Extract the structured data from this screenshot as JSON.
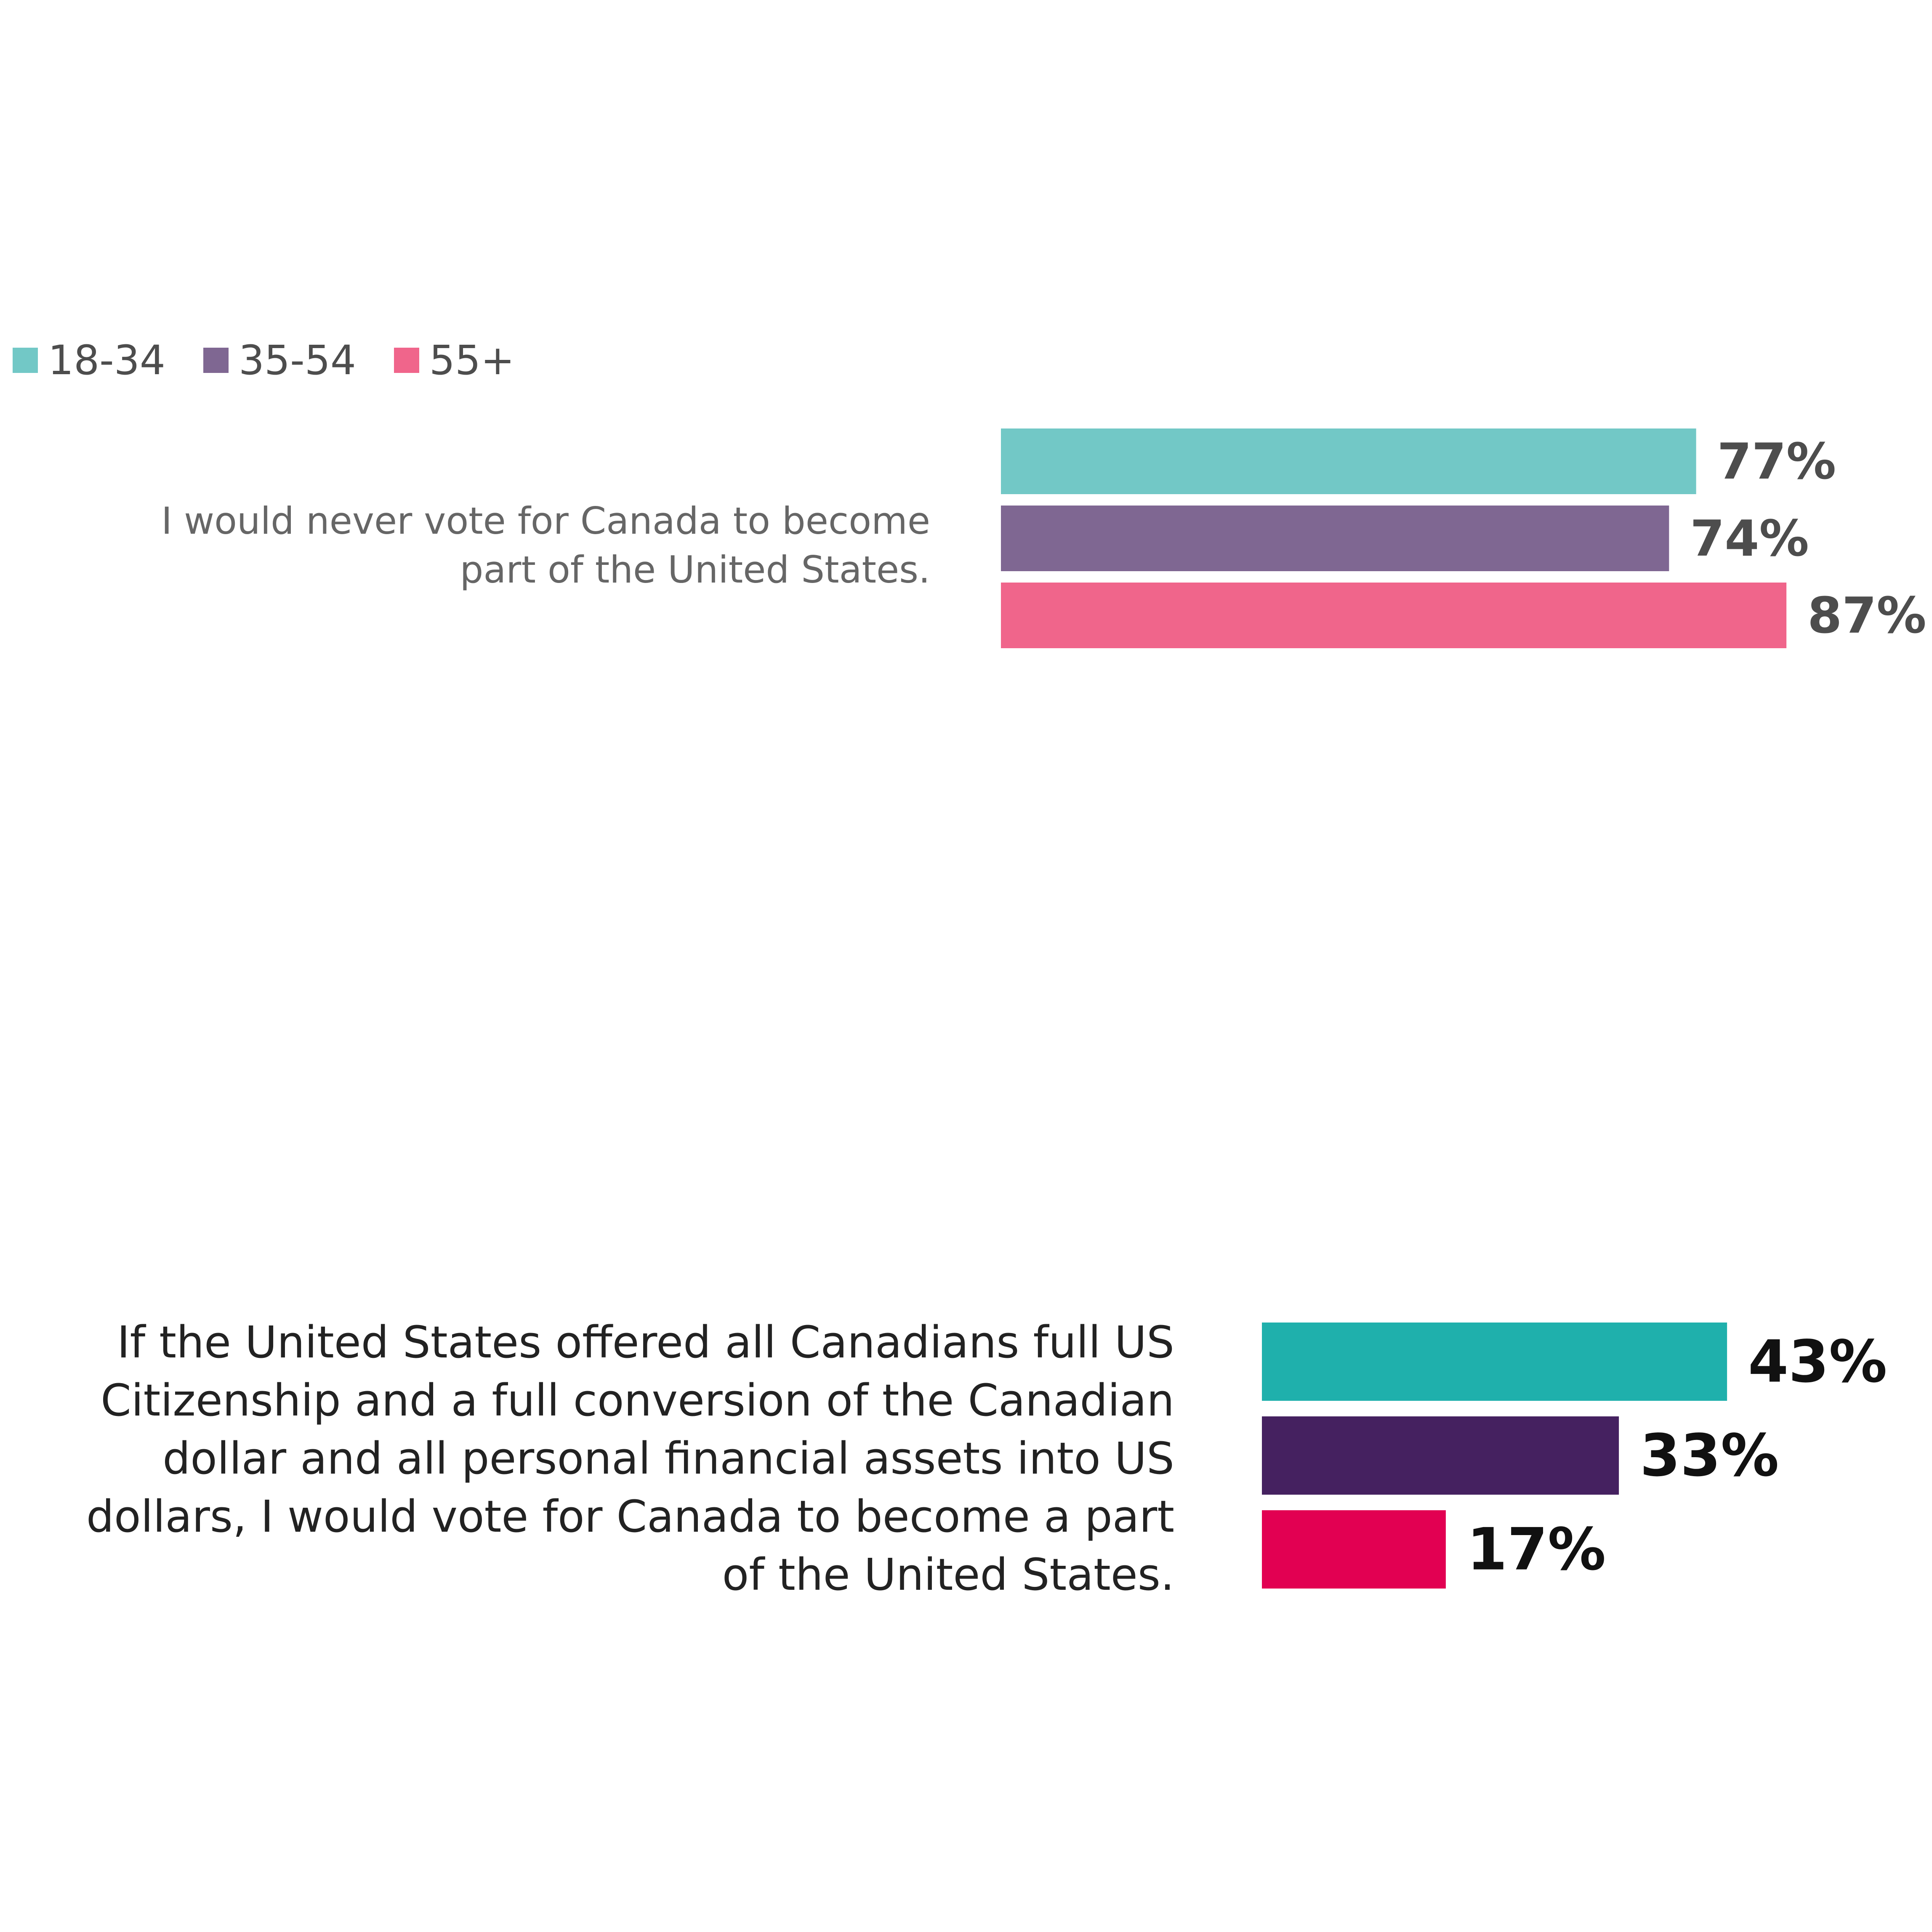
{
  "legend": [
    {
      "label": "18-34",
      "color": "#72c8c6"
    },
    {
      "label": "35-54",
      "color": "#7f6792"
    },
    {
      "label": "55+",
      "color": "#f0658b"
    }
  ],
  "chart_data": [
    {
      "type": "bar",
      "orientation": "horizontal",
      "category": "I would never vote for Canada to become part of the United States.",
      "series": [
        {
          "name": "18-34",
          "value": 77,
          "label": "77%",
          "color": "#72c8c6"
        },
        {
          "name": "35-54",
          "value": 74,
          "label": "74%",
          "color": "#7f6792"
        },
        {
          "name": "55+",
          "value": 87,
          "label": "87%",
          "color": "#f0658b"
        }
      ],
      "label_color": "#4d4d4d"
    },
    {
      "type": "bar",
      "orientation": "horizontal",
      "category": "If the United States offered all Canadians full US Citizenship and a full conversion of the Canadian dollar and all personal financial assets into US dollars, I would vote for Canada to become a part of the United States.",
      "series": [
        {
          "name": "18-34",
          "value": 43,
          "label": "43%",
          "color": "#1fb0ac"
        },
        {
          "name": "35-54",
          "value": 33,
          "label": "33%",
          "color": "#452160"
        },
        {
          "name": "55+",
          "value": 17,
          "label": "17%",
          "color": "#e20052"
        }
      ],
      "label_color": "#111111"
    }
  ]
}
